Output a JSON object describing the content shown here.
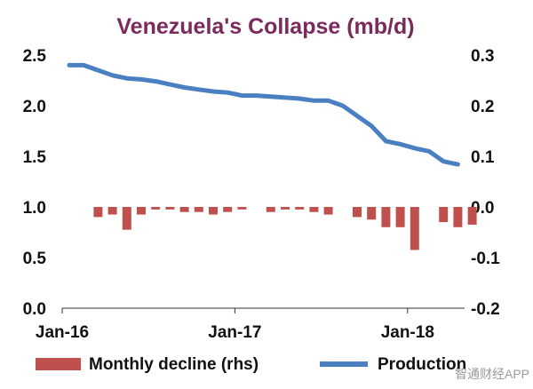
{
  "watermark": "智通财经APP",
  "chart_data": {
    "type": "bar+line",
    "title": "Venezuela's Collapse (mb/d)",
    "colors": {
      "title": "#7b2a5c",
      "bar": "#c0504d",
      "line": "#4a7fc1",
      "axis": "#333333"
    },
    "x_ticks": [
      "Jan-16",
      "Jan-17",
      "Jan-18"
    ],
    "x_tick_months": [
      0,
      12,
      24
    ],
    "x_range_months": [
      0,
      27
    ],
    "left_axis": {
      "ticks": [
        "0.0",
        "0.5",
        "1.0",
        "1.5",
        "2.0",
        "2.5"
      ],
      "ylim": [
        0,
        2.5
      ]
    },
    "right_axis": {
      "ticks": [
        "-0.2",
        "-0.1",
        "0.0",
        "0.1",
        "0.2",
        "0.3"
      ],
      "ylim": [
        -0.2,
        0.3
      ]
    },
    "grid": false,
    "legend_position": "bottom",
    "series": [
      {
        "name": "Monthly decline (rhs)",
        "type": "bar",
        "axis": "right",
        "x_months": [
          2,
          3,
          4,
          5,
          6,
          7,
          8,
          9,
          10,
          11,
          12,
          14,
          15,
          16,
          17,
          18,
          20,
          21,
          22,
          23,
          24,
          26,
          27,
          28
        ],
        "values": [
          -0.02,
          -0.015,
          -0.045,
          -0.015,
          -0.005,
          -0.005,
          -0.01,
          -0.01,
          -0.015,
          -0.01,
          -0.005,
          -0.01,
          -0.005,
          -0.005,
          -0.01,
          -0.015,
          -0.02,
          -0.025,
          -0.04,
          -0.04,
          -0.085,
          -0.03,
          -0.04,
          -0.035
        ]
      },
      {
        "name": "Production",
        "type": "line",
        "axis": "left",
        "x_months": [
          0,
          1,
          2,
          3,
          4,
          5,
          6,
          7,
          8,
          9,
          10,
          11,
          12,
          13,
          14,
          15,
          16,
          17,
          18,
          19,
          20,
          21,
          22,
          23,
          24,
          25,
          26,
          27
        ],
        "values": [
          2.4,
          2.4,
          2.35,
          2.3,
          2.27,
          2.26,
          2.24,
          2.21,
          2.18,
          2.16,
          2.14,
          2.13,
          2.1,
          2.1,
          2.09,
          2.08,
          2.07,
          2.05,
          2.05,
          2.0,
          1.9,
          1.8,
          1.65,
          1.62,
          1.58,
          1.55,
          1.45,
          1.42
        ]
      }
    ]
  }
}
